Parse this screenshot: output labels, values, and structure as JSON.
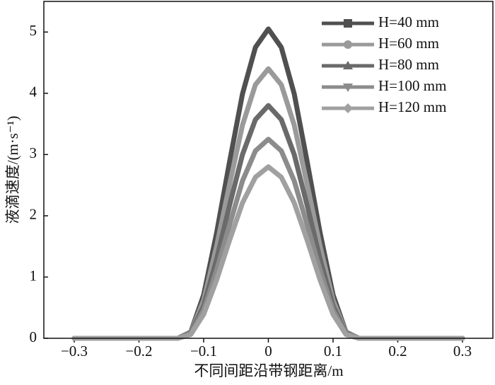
{
  "chart_data": {
    "type": "line",
    "x_label": "不同间距沿带钢距离/m",
    "y_label": "液滴速度/(m·s⁻¹)",
    "x": [
      -0.3,
      -0.2,
      -0.14,
      -0.12,
      -0.1,
      -0.08,
      -0.06,
      -0.04,
      -0.02,
      0,
      0.02,
      0.04,
      0.06,
      0.08,
      0.1,
      0.12,
      0.14,
      0.2,
      0.3
    ],
    "series": [
      {
        "name": "H=40 mm",
        "color": "#505050",
        "values": [
          0,
          0,
          0,
          0.1,
          0.71,
          1.72,
          2.88,
          3.99,
          4.75,
          5.05,
          4.75,
          3.99,
          2.88,
          1.72,
          0.71,
          0.1,
          0,
          0,
          0
        ]
      },
      {
        "name": "H=60 mm",
        "color": "#9a9a9a",
        "values": [
          0,
          0,
          0,
          0.09,
          0.62,
          1.5,
          2.51,
          3.48,
          4.14,
          4.4,
          4.14,
          3.48,
          2.51,
          1.5,
          0.62,
          0.09,
          0,
          0,
          0
        ]
      },
      {
        "name": "H=80 mm",
        "color": "#6a6a6a",
        "values": [
          0,
          0,
          0,
          0.08,
          0.53,
          1.29,
          2.17,
          3.0,
          3.57,
          3.8,
          3.57,
          3.0,
          2.17,
          1.29,
          0.53,
          0.08,
          0,
          0,
          0
        ]
      },
      {
        "name": "H=100 mm",
        "color": "#8c8c8c",
        "values": [
          0,
          0,
          0,
          0.07,
          0.46,
          1.11,
          1.85,
          2.57,
          3.06,
          3.25,
          3.06,
          2.57,
          1.85,
          1.11,
          0.46,
          0.07,
          0,
          0,
          0
        ]
      },
      {
        "name": "H=120 mm",
        "color": "#a0a0a0",
        "values": [
          0,
          0,
          0,
          0.06,
          0.39,
          0.95,
          1.6,
          2.21,
          2.63,
          2.8,
          2.63,
          2.21,
          1.6,
          0.95,
          0.39,
          0.06,
          0,
          0,
          0
        ]
      }
    ],
    "xlim": [
      -0.347,
      0.347
    ],
    "xticks": [
      {
        "value": -0.3,
        "label": "−0.3"
      },
      {
        "value": -0.2,
        "label": "−0.2"
      },
      {
        "value": -0.1,
        "label": "−0.1"
      },
      0,
      0.1,
      0.2,
      0.3
    ],
    "ylim": [
      0,
      5.5
    ],
    "yticks": [
      0,
      1,
      2,
      3,
      4,
      5
    ],
    "legend": "upper right"
  }
}
